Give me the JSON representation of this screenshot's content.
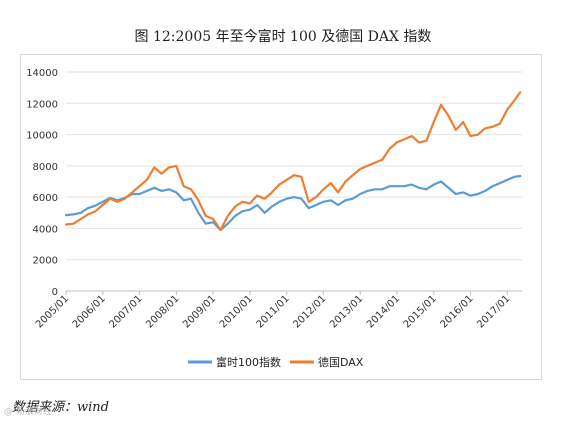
{
  "chart_data": {
    "type": "line",
    "title": "图 12:2005 年至今富时 100 及德国 DAX 指数",
    "ylim": [
      0,
      14000
    ],
    "yticks": [
      0,
      2000,
      4000,
      6000,
      8000,
      10000,
      12000,
      14000
    ],
    "xlim": [
      2005.0,
      2017.4
    ],
    "xticks": [
      "2005/01",
      "2006/01",
      "2007/01",
      "2008/01",
      "2009/01",
      "2010/01",
      "2011/01",
      "2012/01",
      "2013/01",
      "2014/01",
      "2015/01",
      "2016/01",
      "2017/01"
    ],
    "grid": "horizontal",
    "legend_position": "bottom",
    "series": [
      {
        "name": "富时100指数",
        "color": "#5b9bd5",
        "x": [
          2005.0,
          2005.2,
          2005.4,
          2005.6,
          2005.8,
          2006.0,
          2006.2,
          2006.4,
          2006.6,
          2006.8,
          2007.0,
          2007.2,
          2007.4,
          2007.6,
          2007.8,
          2008.0,
          2008.2,
          2008.4,
          2008.6,
          2008.8,
          2009.0,
          2009.2,
          2009.4,
          2009.6,
          2009.8,
          2010.0,
          2010.2,
          2010.4,
          2010.6,
          2010.8,
          2011.0,
          2011.2,
          2011.4,
          2011.6,
          2011.8,
          2012.0,
          2012.2,
          2012.4,
          2012.6,
          2012.8,
          2013.0,
          2013.2,
          2013.4,
          2013.6,
          2013.8,
          2014.0,
          2014.2,
          2014.4,
          2014.6,
          2014.8,
          2015.0,
          2015.2,
          2015.4,
          2015.6,
          2015.8,
          2016.0,
          2016.2,
          2016.4,
          2016.6,
          2016.8,
          2017.0,
          2017.2,
          2017.35
        ],
        "values": [
          4850,
          4900,
          5000,
          5300,
          5450,
          5700,
          5950,
          5800,
          5950,
          6200,
          6200,
          6400,
          6600,
          6400,
          6500,
          6300,
          5800,
          5900,
          5000,
          4300,
          4400,
          3900,
          4300,
          4800,
          5100,
          5200,
          5500,
          5000,
          5400,
          5700,
          5900,
          6000,
          5900,
          5300,
          5500,
          5700,
          5800,
          5500,
          5800,
          5900,
          6200,
          6400,
          6500,
          6500,
          6700,
          6700,
          6700,
          6800,
          6600,
          6500,
          6800,
          7000,
          6600,
          6200,
          6300,
          6100,
          6200,
          6400,
          6700,
          6900,
          7100,
          7300,
          7350
        ]
      },
      {
        "name": "德国DAX",
        "color": "#ed7d31",
        "x": [
          2005.0,
          2005.2,
          2005.4,
          2005.6,
          2005.8,
          2006.0,
          2006.2,
          2006.4,
          2006.6,
          2006.8,
          2007.0,
          2007.2,
          2007.4,
          2007.6,
          2007.8,
          2008.0,
          2008.2,
          2008.4,
          2008.6,
          2008.8,
          2009.0,
          2009.2,
          2009.4,
          2009.6,
          2009.8,
          2010.0,
          2010.2,
          2010.4,
          2010.6,
          2010.8,
          2011.0,
          2011.2,
          2011.4,
          2011.6,
          2011.8,
          2012.0,
          2012.2,
          2012.4,
          2012.6,
          2012.8,
          2013.0,
          2013.2,
          2013.4,
          2013.6,
          2013.8,
          2014.0,
          2014.2,
          2014.4,
          2014.6,
          2014.8,
          2015.0,
          2015.2,
          2015.4,
          2015.6,
          2015.8,
          2016.0,
          2016.2,
          2016.4,
          2016.6,
          2016.8,
          2017.0,
          2017.2,
          2017.35
        ],
        "values": [
          4250,
          4300,
          4600,
          4900,
          5100,
          5500,
          5900,
          5700,
          5900,
          6300,
          6700,
          7100,
          7900,
          7500,
          7900,
          8000,
          6700,
          6500,
          5800,
          4800,
          4600,
          3900,
          4800,
          5400,
          5700,
          5600,
          6100,
          5900,
          6300,
          6800,
          7100,
          7400,
          7300,
          5700,
          6000,
          6500,
          6900,
          6300,
          7000,
          7400,
          7800,
          8000,
          8200,
          8400,
          9100,
          9500,
          9700,
          9900,
          9500,
          9600,
          10800,
          11900,
          11200,
          10300,
          10800,
          9900,
          10000,
          10400,
          10500,
          10700,
          11600,
          12200,
          12700
        ]
      }
    ]
  },
  "source": "数据来源：wind",
  "watermark": "@ 新浪财经"
}
